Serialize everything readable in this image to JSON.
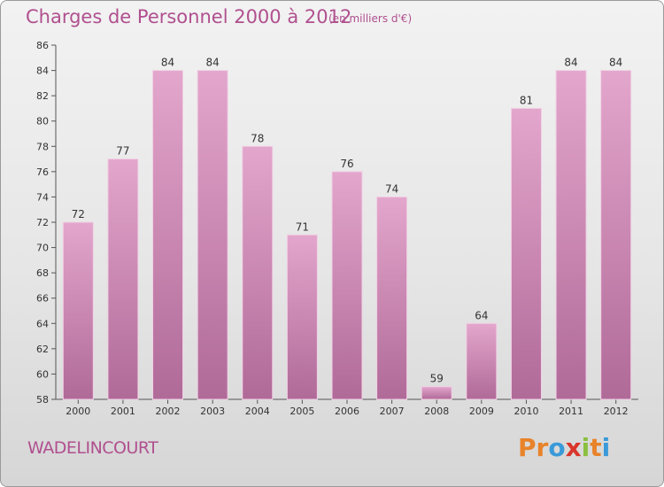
{
  "header": {
    "title": "Charges de Personnel 2000 à 2012",
    "subtitle": "(en milliers d'€)"
  },
  "footer": {
    "commune": "WADELINCOURT",
    "logo_text": "Proxiti",
    "logo_colors": [
      "#e8832a",
      "#e8832a",
      "#3a9ad9",
      "#d9352b",
      "#8bbf3f",
      "#e8832a",
      "#3a9ad9"
    ]
  },
  "colors": {
    "bar_top": "#e3a6cc",
    "bar_bottom": "#b06a98",
    "title": "#b0508f",
    "text": "#333333"
  },
  "chart_data": {
    "type": "bar",
    "title": "Charges de Personnel 2000 à 2012",
    "subtitle": "(en milliers d'€)",
    "xlabel": "",
    "ylabel": "",
    "categories": [
      "2000",
      "2001",
      "2002",
      "2003",
      "2004",
      "2005",
      "2006",
      "2007",
      "2008",
      "2009",
      "2010",
      "2011",
      "2012"
    ],
    "values": [
      72,
      77,
      84,
      84,
      78,
      71,
      76,
      74,
      59,
      64,
      81,
      84,
      84
    ],
    "ylim": [
      58,
      86
    ],
    "yticks": [
      58,
      60,
      62,
      64,
      66,
      68,
      70,
      72,
      74,
      76,
      78,
      80,
      82,
      84,
      86
    ],
    "grid": false,
    "data_labels": true
  }
}
